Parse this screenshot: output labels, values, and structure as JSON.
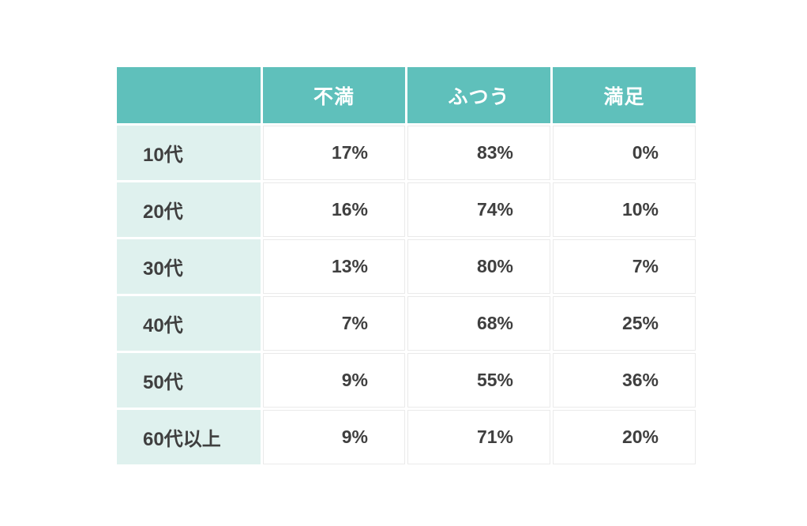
{
  "table": {
    "columns": [
      "",
      "不満",
      "ふつう",
      "満足"
    ],
    "rows": [
      {
        "label": "10代",
        "values": [
          "17%",
          "83%",
          "0%"
        ]
      },
      {
        "label": "20代",
        "values": [
          "16%",
          "74%",
          "10%"
        ]
      },
      {
        "label": "30代",
        "values": [
          "13%",
          "80%",
          "7%"
        ]
      },
      {
        "label": "40代",
        "values": [
          "7%",
          "68%",
          "25%"
        ]
      },
      {
        "label": "50代",
        "values": [
          "9%",
          "55%",
          "36%"
        ]
      },
      {
        "label": "60代以上",
        "values": [
          "9%",
          "71%",
          "20%"
        ]
      }
    ],
    "colors": {
      "header_bg": "#5fc0bb",
      "row_label_bg": "#dff1ee",
      "value_cell_bg": "#ffffff",
      "header_text": "#ffffff",
      "body_text": "#3f3f3f",
      "cell_border": "#eaeaea",
      "page_bg": "#ffffff"
    }
  },
  "chart_data": {
    "type": "table",
    "title": "",
    "categories": [
      "10代",
      "20代",
      "30代",
      "40代",
      "50代",
      "60代以上"
    ],
    "series": [
      {
        "name": "不満",
        "values": [
          17,
          16,
          13,
          7,
          9,
          9
        ],
        "unit": "%"
      },
      {
        "name": "ふつう",
        "values": [
          83,
          74,
          80,
          68,
          55,
          71
        ],
        "unit": "%"
      },
      {
        "name": "満足",
        "values": [
          0,
          10,
          7,
          25,
          36,
          20
        ],
        "unit": "%"
      }
    ]
  }
}
